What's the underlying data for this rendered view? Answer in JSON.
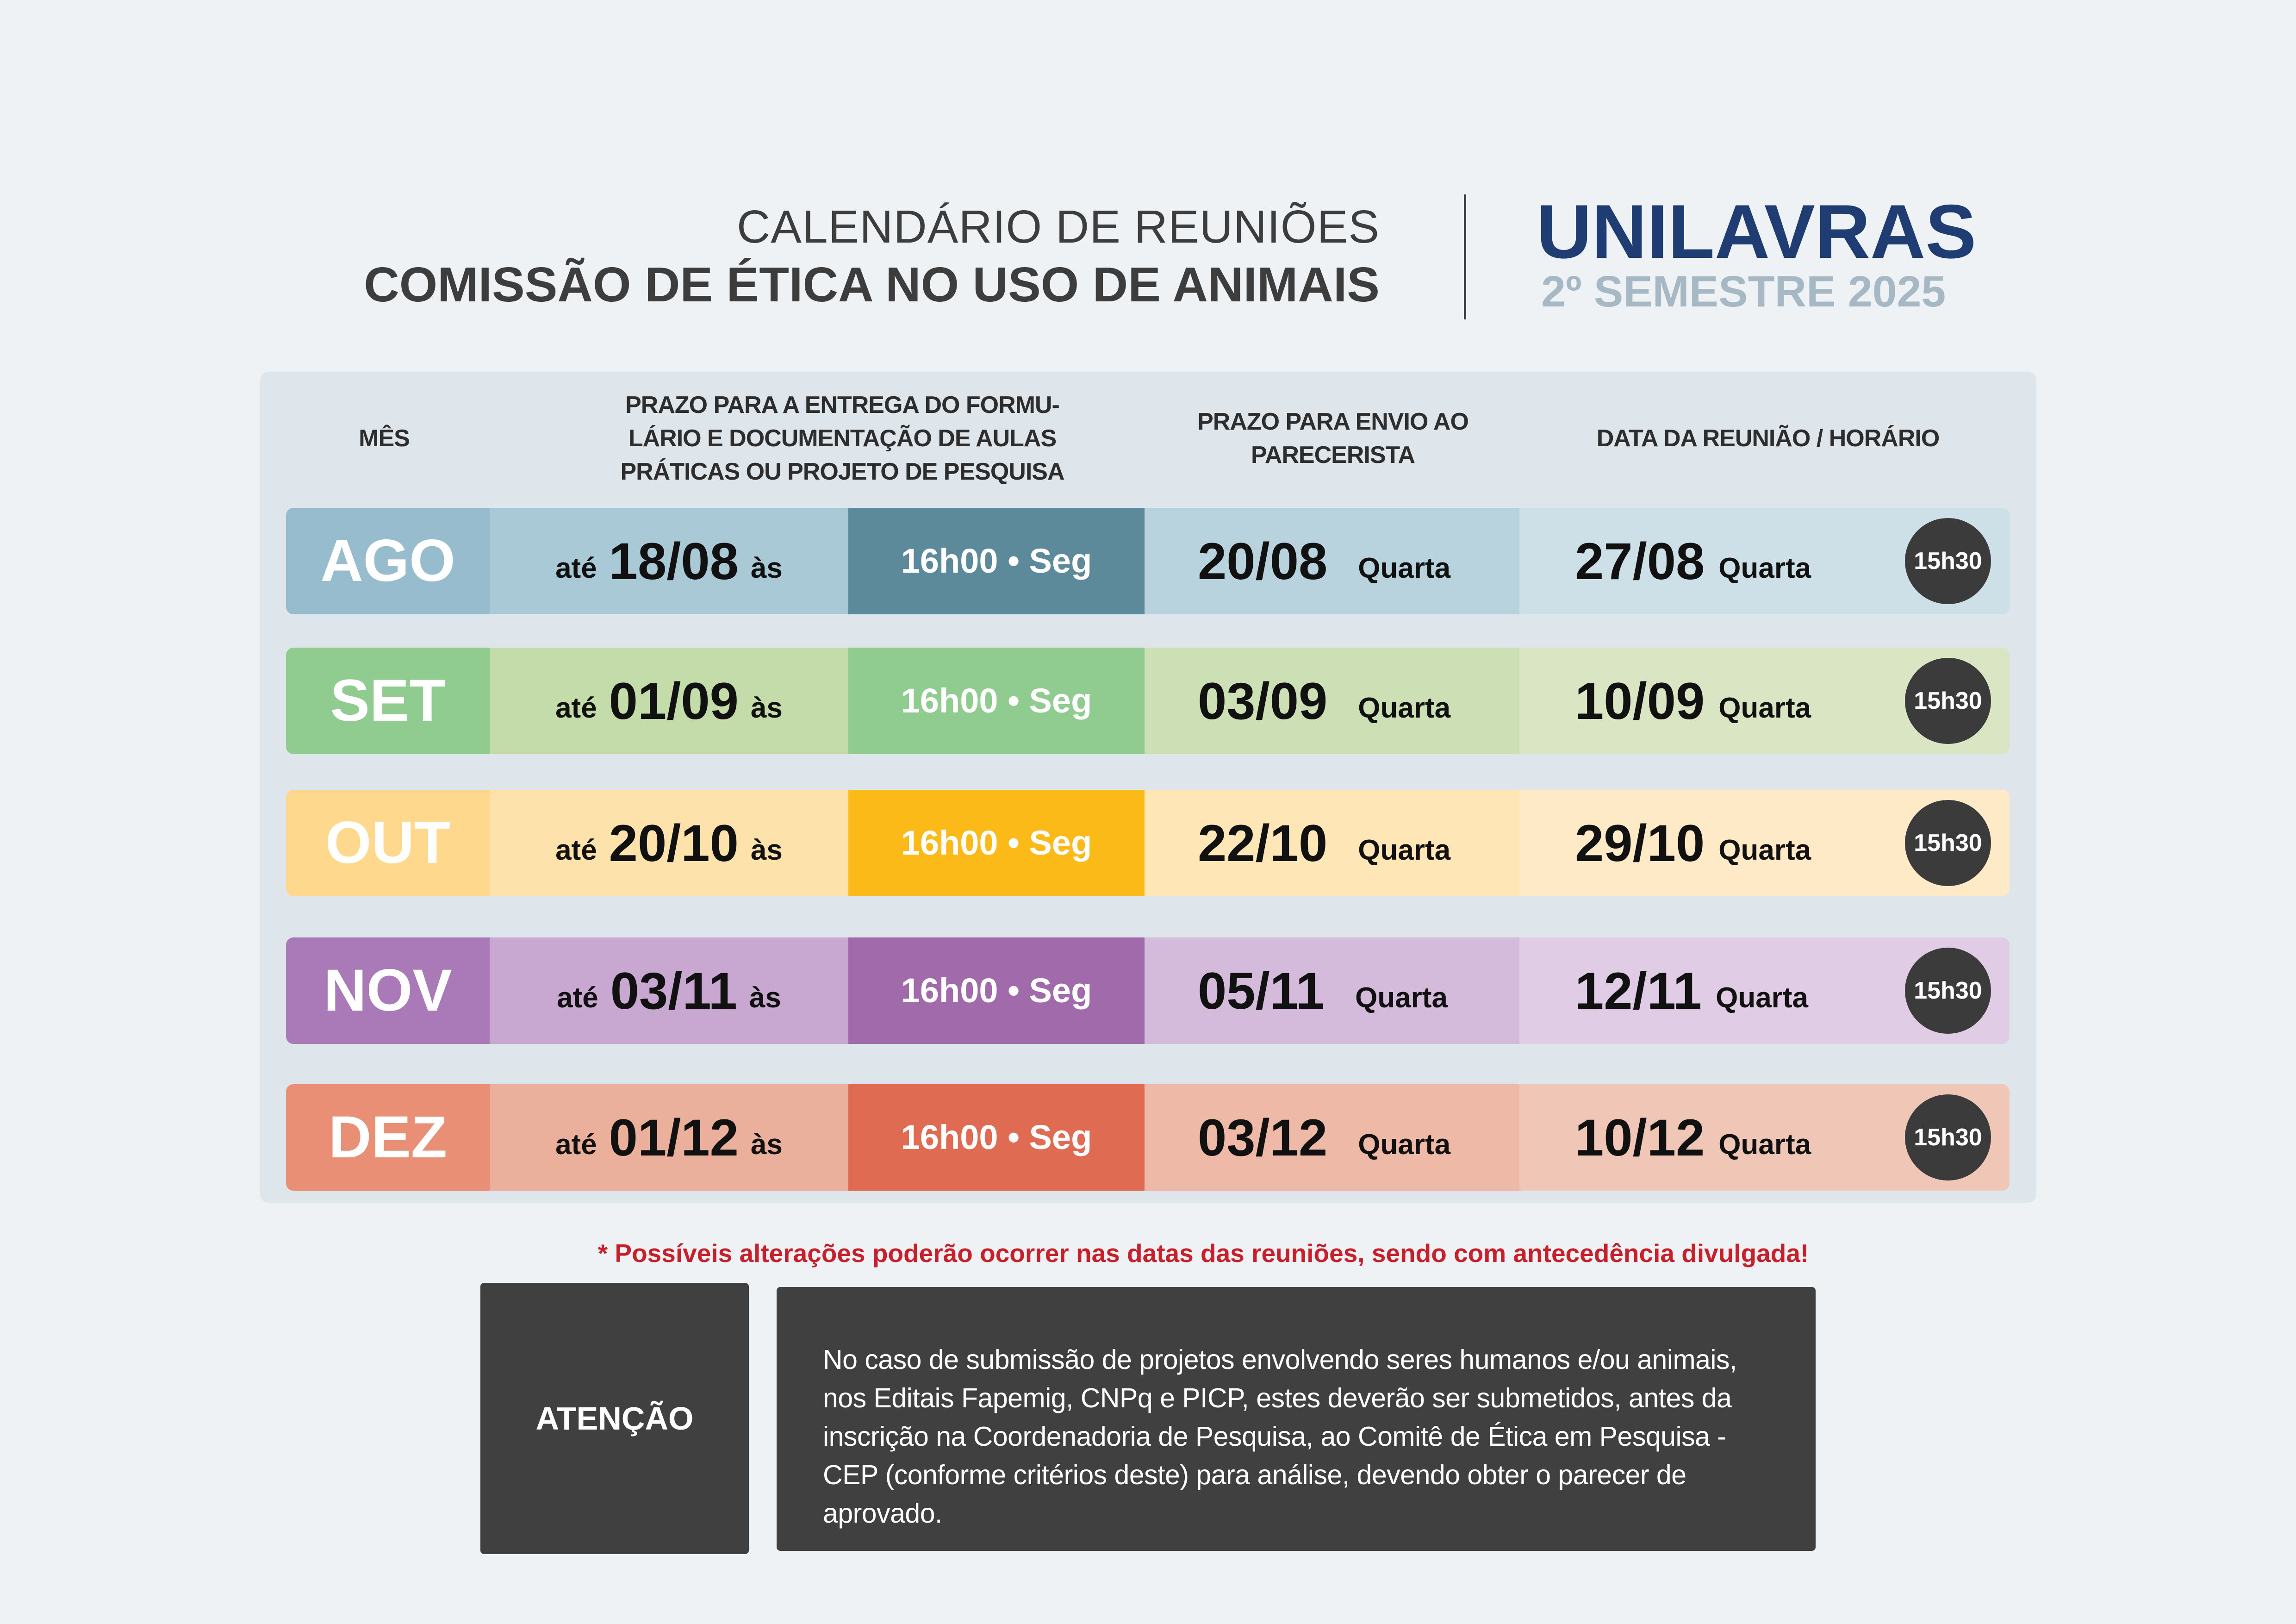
{
  "header": {
    "title_line1": "CALENDÁRIO DE REUNIÕES",
    "title_line2": "COMISSÃO DE ÉTICA NO USO DE ANIMAIS",
    "brand": "UNILAVRAS",
    "semester": "2º SEMESTRE 2025"
  },
  "table": {
    "headers": {
      "month": "MÊS",
      "deadline_1": "PRAZO PARA A ENTREGA DO FORMU-",
      "deadline_2": "LÁRIO E DOCUMENTAÇÃO DE AULAS",
      "deadline_3": "PRÁTICAS OU PROJETO DE PESQUISA",
      "reviewer_1": "PRAZO PARA ENVIO AO",
      "reviewer_2": "PARECERISTA",
      "meeting": "DATA DA REUNIÃO / HORÁRIO"
    },
    "rows": [
      {
        "month": "AGO",
        "pre": "até",
        "deadline": "18/08",
        "post": "às",
        "time": "16h00 • Seg",
        "reviewer_date": "20/08",
        "reviewer_day": "Quarta",
        "meeting_date": "27/08",
        "meeting_day": "Quarta",
        "meeting_time": "15h30",
        "colors": {
          "month": "#97bccd",
          "deadline": "#a9c9d6",
          "time": "#5c8a9a",
          "reviewer": "#b9d3de",
          "meeting": "#cddfe7"
        }
      },
      {
        "month": "SET",
        "pre": "até",
        "deadline": "01/09",
        "post": "às",
        "time": "16h00 • Seg",
        "reviewer_date": "03/09",
        "reviewer_day": "Quarta",
        "meeting_date": "10/09",
        "meeting_day": "Quarta",
        "meeting_time": "15h30",
        "colors": {
          "month": "#90cc8f",
          "deadline": "#c3dca9",
          "time": "#90cc8f",
          "reviewer": "#cde0b5",
          "meeting": "#dae6c3"
        }
      },
      {
        "month": "OUT",
        "pre": "até",
        "deadline": "20/10",
        "post": "às",
        "time": "16h00 • Seg",
        "reviewer_date": "22/10",
        "reviewer_day": "Quarta",
        "meeting_date": "29/10",
        "meeting_day": "Quarta",
        "meeting_time": "15h30",
        "colors": {
          "month": "#fed98d",
          "deadline": "#fee2ac",
          "time": "#fbba18",
          "reviewer": "#fee6b7",
          "meeting": "#feeac6"
        }
      },
      {
        "month": "NOV",
        "pre": "até",
        "deadline": "03/11",
        "post": "às",
        "time": "16h00 • Seg",
        "reviewer_date": "05/11",
        "reviewer_day": "Quarta",
        "meeting_date": "12/11",
        "meeting_day": "Quarta",
        "meeting_time": "15h30",
        "colors": {
          "month": "#a97ab7",
          "deadline": "#c8a8d0",
          "time": "#a06aab",
          "reviewer": "#d4bbdb",
          "meeting": "#e0cde5"
        }
      },
      {
        "month": "DEZ",
        "pre": "até",
        "deadline": "01/12",
        "post": "às",
        "time": "16h00 • Seg",
        "reviewer_date": "03/12",
        "reviewer_day": "Quarta",
        "meeting_date": "10/12",
        "meeting_day": "Quarta",
        "meeting_time": "15h30",
        "colors": {
          "month": "#e88f76",
          "deadline": "#ebb09b",
          "time": "#e06b53",
          "reviewer": "#eeb9a6",
          "meeting": "#f0c7b7"
        }
      }
    ]
  },
  "note": "* Possíveis alterações poderão ocorrer nas  datas das reuniões, sendo com antecedência divulgada!",
  "attention": {
    "label": "ATENÇÃO",
    "text": "No caso de submissão de projetos envolvendo seres humanos e/ou animais, nos Editais Fapemig, CNPq e PICP, estes deverão ser submetidos, antes da inscrição na Coordenadoria de Pesquisa, ao Comitê de Ética em Pesquisa - CEP (conforme critérios deste) para análise, devendo obter o parecer de aprovado."
  }
}
